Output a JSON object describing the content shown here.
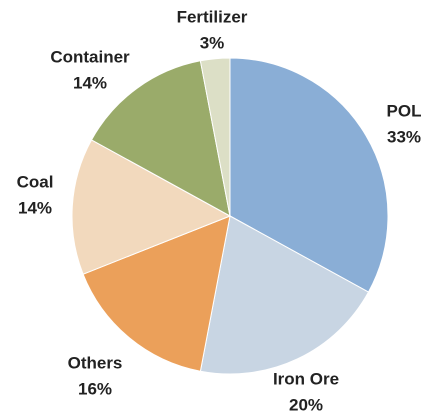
{
  "chart_data": {
    "type": "pie",
    "categories": [
      "POL",
      "Iron Ore",
      "Others",
      "Coal",
      "Container",
      "Fertilizer"
    ],
    "values": [
      33,
      20,
      16,
      14,
      14,
      3
    ],
    "value_labels": [
      "33%",
      "20%",
      "16%",
      "14%",
      "14%",
      "3%"
    ],
    "colors": [
      "#8aaed6",
      "#c8d5e3",
      "#eba05a",
      "#f2d9bd",
      "#9aab6a",
      "#dcdfc6"
    ]
  }
}
